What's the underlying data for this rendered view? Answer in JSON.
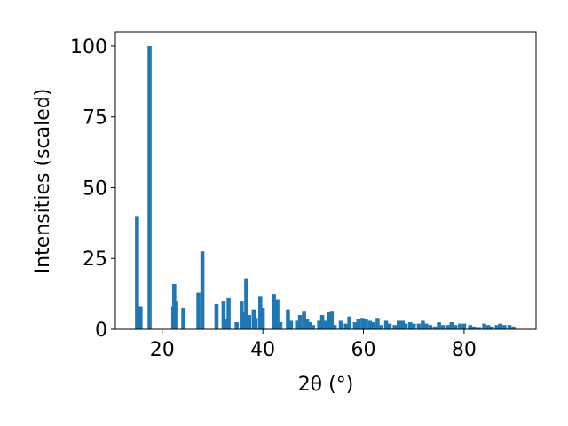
{
  "chart_data": {
    "type": "bar",
    "xlabel": "2θ (°)",
    "ylabel": "Intensities (scaled)",
    "color": "#1f77b4",
    "x": [
      15.0,
      15.7,
      17.5,
      22.2,
      22.4,
      22.8,
      24.2,
      27.2,
      28.0,
      30.8,
      32.2,
      32.7,
      33.2,
      34.8,
      35.8,
      36.4,
      36.7,
      37.3,
      38.2,
      38.6,
      39.5,
      40.0,
      42.2,
      42.9,
      43.5,
      45.0,
      45.6,
      46.8,
      47.4,
      48.2,
      48.8,
      49.3,
      50.0,
      51.2,
      51.8,
      52.5,
      53.1,
      53.7,
      54.3,
      55.5,
      56.5,
      57.2,
      58.3,
      59.0,
      59.8,
      60.5,
      61.3,
      62.0,
      62.8,
      63.5,
      64.5,
      65.2,
      66.2,
      67.0,
      67.8,
      68.4,
      69.3,
      70.0,
      71.0,
      71.8,
      72.5,
      73.3,
      74.2,
      75.0,
      75.8,
      76.8,
      77.5,
      78.3,
      79.2,
      80.0,
      81.2,
      82.0,
      83.0,
      84.0,
      84.8,
      85.5,
      86.5,
      87.2,
      88.0,
      89.0,
      89.8
    ],
    "values": [
      40,
      8,
      100,
      8,
      16,
      10,
      7.5,
      13,
      27.5,
      9,
      10,
      3.5,
      11,
      2.5,
      10,
      6,
      18,
      5,
      7,
      4,
      11.5,
      7.5,
      12.5,
      10.5,
      2.5,
      7,
      3,
      3,
      5,
      6.5,
      3.5,
      2.5,
      1.5,
      3,
      5,
      3,
      6,
      6.5,
      1.5,
      3,
      2,
      4.5,
      2.5,
      3.5,
      4,
      3.5,
      3,
      2.5,
      4,
      1.5,
      3,
      2,
      1.5,
      3,
      3,
      2,
      2.5,
      2,
      2,
      3,
      2,
      1.5,
      1,
      2.5,
      1.5,
      1.5,
      2.5,
      1.5,
      2,
      2,
      1.5,
      1,
      0.5,
      2,
      1.5,
      1,
      1.5,
      2,
      1.5,
      1.5,
      1
    ],
    "xlim": [
      10.7,
      94.3
    ],
    "ylim": [
      0,
      105
    ],
    "xticks": [
      20,
      40,
      60,
      80
    ],
    "yticks": [
      0,
      25,
      50,
      75,
      100
    ]
  }
}
